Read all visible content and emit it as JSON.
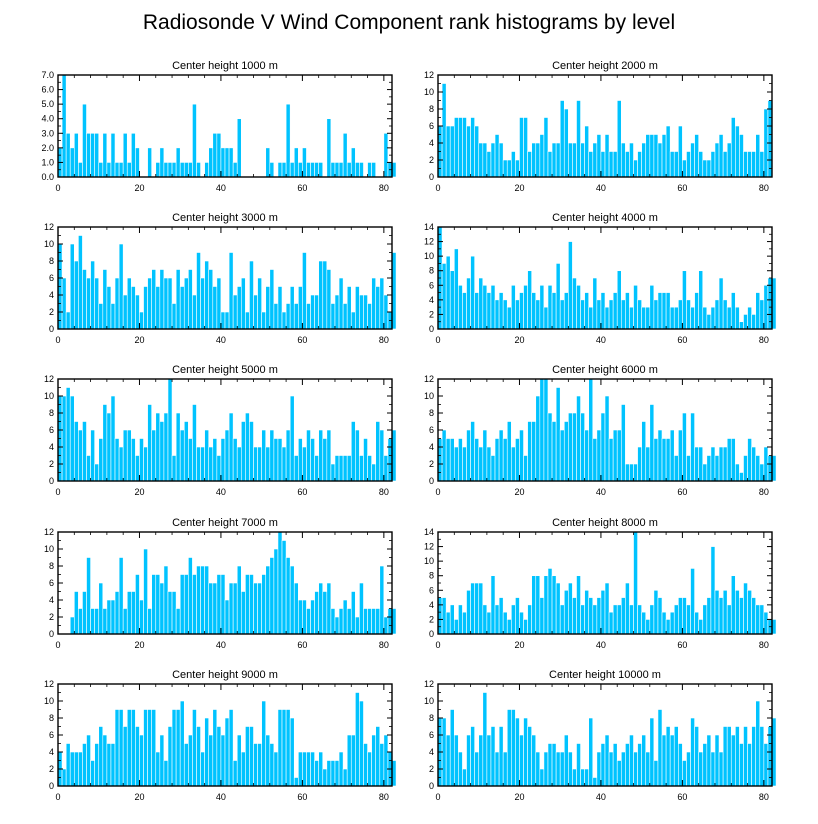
{
  "figure": {
    "title": "Radiosonde V Wind Component rank histograms by level",
    "bar_color": "#00c3ff",
    "axis_color": "#000000"
  },
  "chart_data": [
    {
      "type": "bar",
      "title": "Center height 1000 m",
      "xlim": [
        0,
        82
      ],
      "ylim": [
        0,
        7
      ],
      "xticks": [
        0,
        20,
        40,
        60,
        80
      ],
      "yticks": [
        0,
        1,
        2,
        3,
        4,
        5,
        6,
        7
      ],
      "ytick_labels": [
        "0.0",
        "1.0",
        "2.0",
        "3.0",
        "4.0",
        "5.0",
        "6.0",
        "7.0"
      ],
      "values": [
        2,
        7,
        3,
        2,
        3,
        1,
        5,
        3,
        3,
        3,
        1,
        3,
        1,
        3,
        1,
        1,
        3,
        1,
        3,
        2,
        0,
        0,
        2,
        0,
        1,
        2,
        1,
        1,
        1,
        2,
        1,
        1,
        1,
        5,
        1,
        0,
        1,
        2,
        3,
        3,
        2,
        2,
        2,
        1,
        4,
        0,
        0,
        0,
        0,
        0,
        0,
        2,
        1,
        0,
        1,
        1,
        5,
        1,
        2,
        1,
        2,
        1,
        1,
        1,
        1,
        0,
        4,
        1,
        1,
        1,
        3,
        1,
        2,
        1,
        1,
        0,
        1,
        1,
        0,
        0,
        3,
        1,
        1
      ]
    },
    {
      "type": "bar",
      "title": "Center height 2000 m",
      "xlim": [
        0,
        82
      ],
      "ylim": [
        0,
        12
      ],
      "xticks": [
        0,
        20,
        40,
        60,
        80
      ],
      "yticks": [
        0,
        2,
        4,
        6,
        8,
        10,
        12
      ],
      "values": [
        6,
        11,
        6,
        6,
        7,
        7,
        7,
        6,
        7,
        6,
        4,
        4,
        3,
        4,
        5,
        4,
        2,
        2,
        3,
        2,
        7,
        7,
        3,
        4,
        4,
        5,
        7,
        3,
        4,
        4,
        9,
        8,
        4,
        4,
        9,
        4,
        6,
        3,
        4,
        5,
        3,
        5,
        3,
        3,
        9,
        4,
        3,
        4,
        2,
        3,
        4,
        5,
        5,
        5,
        4,
        5,
        6,
        3,
        3,
        6,
        2,
        3,
        4,
        5,
        3,
        2,
        2,
        3,
        4,
        5,
        3,
        4,
        7,
        6,
        5,
        3,
        3,
        3,
        5,
        3,
        8,
        9
      ]
    },
    {
      "type": "bar",
      "title": "Center height 3000 m",
      "xlim": [
        0,
        82
      ],
      "ylim": [
        0,
        12
      ],
      "xticks": [
        0,
        20,
        40,
        60,
        80
      ],
      "yticks": [
        0,
        2,
        4,
        6,
        8,
        10,
        12
      ],
      "values": [
        10,
        6,
        2,
        10,
        8,
        11,
        7,
        6,
        8,
        6,
        3,
        7,
        5,
        3,
        6,
        10,
        4,
        6,
        5,
        4,
        2,
        5,
        6,
        7,
        5,
        7,
        6,
        6,
        3,
        7,
        5,
        6,
        7,
        4,
        9,
        6,
        8,
        7,
        5,
        6,
        2,
        2,
        9,
        4,
        5,
        6,
        2,
        8,
        4,
        6,
        2,
        5,
        7,
        3,
        5,
        2,
        3,
        5,
        3,
        5,
        9,
        3,
        4,
        4,
        8,
        8,
        7,
        3,
        4,
        6,
        3,
        5,
        2,
        5,
        4,
        4,
        3,
        6,
        5,
        6,
        4,
        2,
        9
      ]
    },
    {
      "type": "bar",
      "title": "Center height 4000 m",
      "xlim": [
        0,
        82
      ],
      "ylim": [
        0,
        14
      ],
      "xticks": [
        0,
        20,
        40,
        60,
        80
      ],
      "yticks": [
        0,
        2,
        4,
        6,
        8,
        10,
        12,
        14
      ],
      "values": [
        14,
        9,
        10,
        8,
        11,
        6,
        5,
        7,
        10,
        5,
        7,
        6,
        5,
        6,
        4,
        5,
        4,
        3,
        6,
        4,
        5,
        6,
        8,
        5,
        4,
        6,
        3,
        6,
        5,
        9,
        4,
        5,
        12,
        7,
        6,
        4,
        5,
        3,
        7,
        4,
        5,
        3,
        4,
        5,
        8,
        4,
        5,
        3,
        6,
        4,
        3,
        3,
        6,
        4,
        5,
        5,
        5,
        3,
        3,
        4,
        8,
        4,
        3,
        5,
        8,
        3,
        2,
        3,
        4,
        7,
        4,
        3,
        5,
        3,
        1,
        2,
        3,
        2,
        5,
        4,
        6,
        7,
        7
      ]
    },
    {
      "type": "bar",
      "title": "Center height 5000 m",
      "xlim": [
        0,
        82
      ],
      "ylim": [
        0,
        12
      ],
      "xticks": [
        0,
        20,
        40,
        60,
        80
      ],
      "yticks": [
        0,
        2,
        4,
        6,
        8,
        10,
        12
      ],
      "values": [
        10,
        10,
        11,
        10,
        7,
        6,
        7,
        3,
        6,
        2,
        5,
        9,
        8,
        10,
        5,
        4,
        6,
        6,
        5,
        3,
        5,
        4,
        9,
        6,
        8,
        7,
        8,
        12,
        3,
        8,
        6,
        7,
        5,
        9,
        4,
        4,
        6,
        4,
        5,
        3,
        5,
        6,
        8,
        5,
        4,
        7,
        8,
        7,
        4,
        4,
        6,
        4,
        6,
        5,
        5,
        4,
        6,
        10,
        3,
        5,
        4,
        6,
        5,
        3,
        6,
        5,
        6,
        2,
        3,
        3,
        3,
        3,
        7,
        6,
        3,
        5,
        3,
        2,
        7,
        6,
        3,
        5,
        6
      ]
    },
    {
      "type": "bar",
      "title": "Center height 6000 m",
      "xlim": [
        0,
        82
      ],
      "ylim": [
        0,
        12
      ],
      "xticks": [
        0,
        20,
        40,
        60,
        80
      ],
      "yticks": [
        0,
        2,
        4,
        6,
        8,
        10,
        12
      ],
      "values": [
        5,
        6,
        5,
        5,
        4,
        5,
        4,
        6,
        7,
        5,
        4,
        6,
        4,
        3,
        5,
        6,
        5,
        7,
        4,
        5,
        6,
        3,
        7,
        7,
        10,
        12,
        12,
        8,
        7,
        11,
        6,
        7,
        8,
        8,
        10,
        8,
        6,
        12,
        5,
        6,
        8,
        10,
        5,
        6,
        6,
        9,
        2,
        2,
        2,
        4,
        7,
        4,
        9,
        5,
        6,
        5,
        5,
        6,
        3,
        6,
        8,
        3,
        8,
        4,
        4,
        2,
        3,
        4,
        3,
        4,
        4,
        5,
        5,
        2,
        1,
        3,
        5,
        4,
        3,
        2,
        4,
        3,
        3
      ]
    },
    {
      "type": "bar",
      "title": "Center height 7000 m",
      "xlim": [
        0,
        82
      ],
      "ylim": [
        0,
        12
      ],
      "xticks": [
        0,
        20,
        40,
        60,
        80
      ],
      "yticks": [
        0,
        2,
        4,
        6,
        8,
        10,
        12
      ],
      "values": [
        0,
        0,
        0,
        2,
        5,
        3,
        5,
        9,
        3,
        3,
        6,
        3,
        4,
        4,
        5,
        9,
        3,
        5,
        5,
        7,
        4,
        10,
        3,
        7,
        7,
        6,
        8,
        5,
        5,
        3,
        7,
        7,
        9,
        7,
        8,
        8,
        8,
        6,
        6,
        7,
        7,
        4,
        6,
        6,
        8,
        5,
        7,
        7,
        6,
        6,
        7,
        8,
        9,
        10,
        12,
        11,
        9,
        8,
        6,
        4,
        4,
        3,
        4,
        5,
        6,
        5,
        6,
        3,
        2,
        3,
        4,
        3,
        5,
        2,
        6,
        3,
        3,
        3,
        3,
        8,
        2,
        3,
        3
      ]
    },
    {
      "type": "bar",
      "title": "Center height 8000 m",
      "xlim": [
        0,
        82
      ],
      "ylim": [
        0,
        14
      ],
      "xticks": [
        0,
        20,
        40,
        60,
        80
      ],
      "yticks": [
        0,
        2,
        4,
        6,
        8,
        10,
        12,
        14
      ],
      "values": [
        5,
        5,
        3,
        4,
        2,
        4,
        3,
        6,
        7,
        7,
        7,
        4,
        3,
        8,
        4,
        5,
        3,
        2,
        4,
        5,
        3,
        2,
        4,
        8,
        8,
        5,
        8,
        9,
        8,
        7,
        4,
        6,
        7,
        5,
        8,
        4,
        6,
        5,
        4,
        5,
        6,
        7,
        3,
        4,
        4,
        5,
        7,
        4,
        14,
        4,
        3,
        2,
        4,
        6,
        5,
        3,
        2,
        3,
        4,
        5,
        5,
        4,
        9,
        3,
        2,
        4,
        5,
        12,
        6,
        5,
        6,
        4,
        8,
        6,
        5,
        7,
        6,
        5,
        4,
        4,
        3,
        2,
        2
      ]
    },
    {
      "type": "bar",
      "title": "Center height 9000 m",
      "xlim": [
        0,
        82
      ],
      "ylim": [
        0,
        12
      ],
      "xticks": [
        0,
        20,
        40,
        60,
        80
      ],
      "yticks": [
        0,
        2,
        4,
        6,
        8,
        10,
        12
      ],
      "values": [
        4,
        2,
        5,
        4,
        4,
        4,
        5,
        6,
        3,
        5,
        7,
        6,
        5,
        5,
        9,
        9,
        7,
        9,
        9,
        7,
        6,
        9,
        9,
        9,
        4,
        6,
        3,
        7,
        9,
        9,
        10,
        5,
        6,
        9,
        7,
        4,
        8,
        6,
        9,
        7,
        6,
        8,
        9,
        3,
        6,
        4,
        7,
        7,
        5,
        5,
        10,
        6,
        5,
        4,
        9,
        9,
        9,
        8,
        1,
        4,
        4,
        4,
        4,
        3,
        4,
        2,
        3,
        3,
        3,
        4,
        2,
        6,
        6,
        11,
        10,
        5,
        4,
        6,
        7,
        5,
        6,
        4,
        3
      ]
    },
    {
      "type": "bar",
      "title": "Center height 10000 m",
      "xlim": [
        0,
        82
      ],
      "ylim": [
        0,
        12
      ],
      "xticks": [
        0,
        20,
        40,
        60,
        80
      ],
      "yticks": [
        0,
        2,
        4,
        6,
        8,
        10,
        12
      ],
      "values": [
        8,
        8,
        6,
        9,
        6,
        4,
        2,
        6,
        7,
        4,
        6,
        11,
        6,
        7,
        4,
        7,
        4,
        9,
        9,
        8,
        6,
        8,
        7,
        6,
        4,
        2,
        4,
        5,
        5,
        4,
        4,
        6,
        4,
        2,
        5,
        2,
        2,
        8,
        1,
        4,
        5,
        6,
        4,
        5,
        3,
        4,
        5,
        6,
        4,
        5,
        6,
        4,
        8,
        3,
        9,
        6,
        7,
        6,
        7,
        5,
        3,
        4,
        8,
        7,
        4,
        5,
        6,
        4,
        6,
        4,
        7,
        7,
        6,
        7,
        5,
        7,
        5,
        7,
        10,
        7,
        5,
        7,
        8
      ]
    }
  ]
}
